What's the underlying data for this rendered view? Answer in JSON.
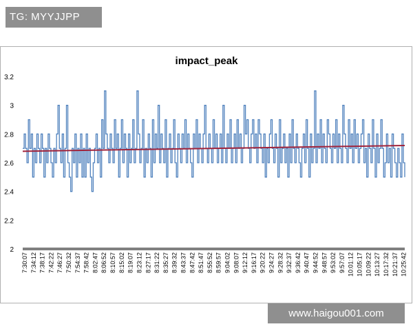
{
  "watermark_top": "TG: MYYJJPP",
  "watermark_bottom": "www.haigou001.com",
  "colors": {
    "series": "#4f81bd",
    "trend": "#a0233b",
    "axis": "#808080",
    "banner": "#8f8f8f"
  },
  "chart_data": {
    "type": "line",
    "title": "impact_peak",
    "xlabel": "",
    "ylabel": "",
    "ylim": [
      2,
      3.2
    ],
    "yticks": [
      "3.2",
      "3",
      "2.8",
      "2.6",
      "2.4",
      "2.2",
      "2"
    ],
    "ytick_values": [
      3.2,
      3.0,
      2.8,
      2.6,
      2.4,
      2.2,
      2.0
    ],
    "xticks": [
      "7:30:07",
      "7:34:12",
      "7:38:17",
      "7:42:22",
      "7:46:27",
      "7:50:32",
      "7:54:37",
      "7:58:42",
      "8:02:47",
      "8:06:52",
      "8:10:57",
      "8:15:02",
      "8:19:07",
      "8:23:12",
      "8:27:17",
      "8:31:22",
      "8:35:27",
      "8:39:32",
      "8:43:37",
      "8:47:42",
      "8:51:47",
      "8:55:52",
      "8:59:57",
      "9:04:02",
      "9:08:07",
      "9:12:12",
      "9:16:17",
      "9:20:22",
      "9:24:27",
      "9:28:32",
      "9:32:37",
      "9:36:42",
      "9:40:47",
      "9:44:52",
      "9:48:57",
      "9:53:02",
      "9:57:07",
      "10:01:12",
      "10:05:17",
      "10:09:22",
      "10:13:27",
      "10:17:32",
      "10:21:37",
      "10:25:42"
    ],
    "grid": false,
    "legend": "none",
    "series": [
      {
        "values": [
          2.7,
          2.8,
          2.7,
          2.6,
          2.9,
          2.7,
          2.8,
          2.5,
          2.7,
          2.6,
          2.8,
          2.7,
          2.6,
          2.8,
          2.7,
          2.5,
          2.7,
          2.6,
          2.8,
          2.7,
          2.6,
          2.5,
          2.7,
          2.6,
          2.8,
          3.0,
          2.7,
          2.6,
          2.8,
          2.5,
          2.7,
          3.0,
          2.6,
          2.5,
          2.4,
          2.7,
          2.6,
          2.8,
          2.5,
          2.7,
          2.6,
          2.8,
          2.5,
          2.7,
          2.5,
          2.8,
          2.6,
          2.7,
          2.5,
          2.4,
          2.6,
          2.7,
          2.8,
          2.6,
          2.7,
          2.5,
          2.9,
          2.7,
          3.1,
          2.8,
          2.7,
          2.6,
          2.8,
          2.7,
          2.6,
          2.9,
          2.7,
          2.8,
          2.5,
          2.7,
          2.9,
          2.6,
          2.8,
          2.7,
          2.5,
          2.8,
          2.6,
          2.7,
          2.9,
          2.6,
          2.7,
          3.1,
          2.8,
          2.6,
          2.7,
          2.9,
          2.5,
          2.7,
          2.6,
          2.8,
          2.7,
          2.5,
          2.9,
          2.6,
          2.8,
          2.7,
          3.0,
          2.6,
          2.8,
          2.7,
          2.6,
          2.9,
          2.5,
          2.7,
          2.8,
          2.6,
          2.7,
          2.9,
          2.6,
          2.5,
          2.8,
          2.7,
          2.6,
          2.8,
          2.7,
          2.9,
          2.6,
          2.8,
          2.7,
          2.6,
          2.5,
          2.8,
          2.7,
          2.9,
          2.6,
          2.8,
          2.7,
          2.6,
          2.8,
          3.0,
          2.7,
          2.6,
          2.8,
          2.7,
          2.6,
          2.9,
          2.7,
          2.8,
          2.6,
          2.7,
          2.8,
          2.6,
          3.0,
          2.7,
          2.6,
          2.8,
          2.7,
          2.9,
          2.6,
          2.7,
          2.8,
          2.6,
          2.9,
          2.7,
          2.8,
          2.6,
          2.7,
          3.0,
          2.8,
          2.9,
          2.7,
          2.6,
          2.8,
          2.9,
          2.7,
          2.8,
          2.6,
          2.9,
          2.8,
          2.7,
          2.6,
          2.8,
          2.5,
          2.7,
          2.6,
          2.8,
          2.9,
          2.7,
          2.6,
          2.8,
          2.7,
          2.5,
          2.9,
          2.6,
          2.7,
          2.8,
          2.6,
          2.7,
          2.5,
          2.8,
          2.6,
          2.9,
          2.7,
          2.6,
          2.8,
          2.7,
          2.6,
          2.5,
          2.7,
          2.8,
          2.6,
          2.9,
          2.7,
          2.5,
          2.8,
          2.6,
          2.7,
          3.1,
          2.6,
          2.8,
          2.7,
          2.9,
          2.6,
          2.8,
          2.7,
          2.6,
          2.9,
          2.8,
          2.7,
          2.6,
          2.8,
          2.7,
          2.9,
          2.6,
          2.8,
          2.7,
          2.6,
          3.0,
          2.8,
          2.7,
          2.6,
          2.9,
          2.7,
          2.8,
          2.6,
          2.9,
          2.7,
          2.8,
          2.6,
          2.7,
          2.8,
          2.9,
          2.6,
          2.7,
          2.5,
          2.8,
          2.7,
          2.6,
          2.9,
          2.7,
          2.5,
          2.8,
          2.6,
          2.7,
          2.9,
          2.7,
          2.5,
          2.6,
          2.8,
          2.6,
          2.7,
          2.5,
          2.8,
          2.7,
          2.6,
          2.5,
          2.7,
          2.6,
          2.5,
          2.8,
          2.6,
          2.5
        ]
      },
      {
        "name": "",
        "kind": "trendline",
        "values": [
          2.68,
          2.72
        ]
      }
    ]
  }
}
